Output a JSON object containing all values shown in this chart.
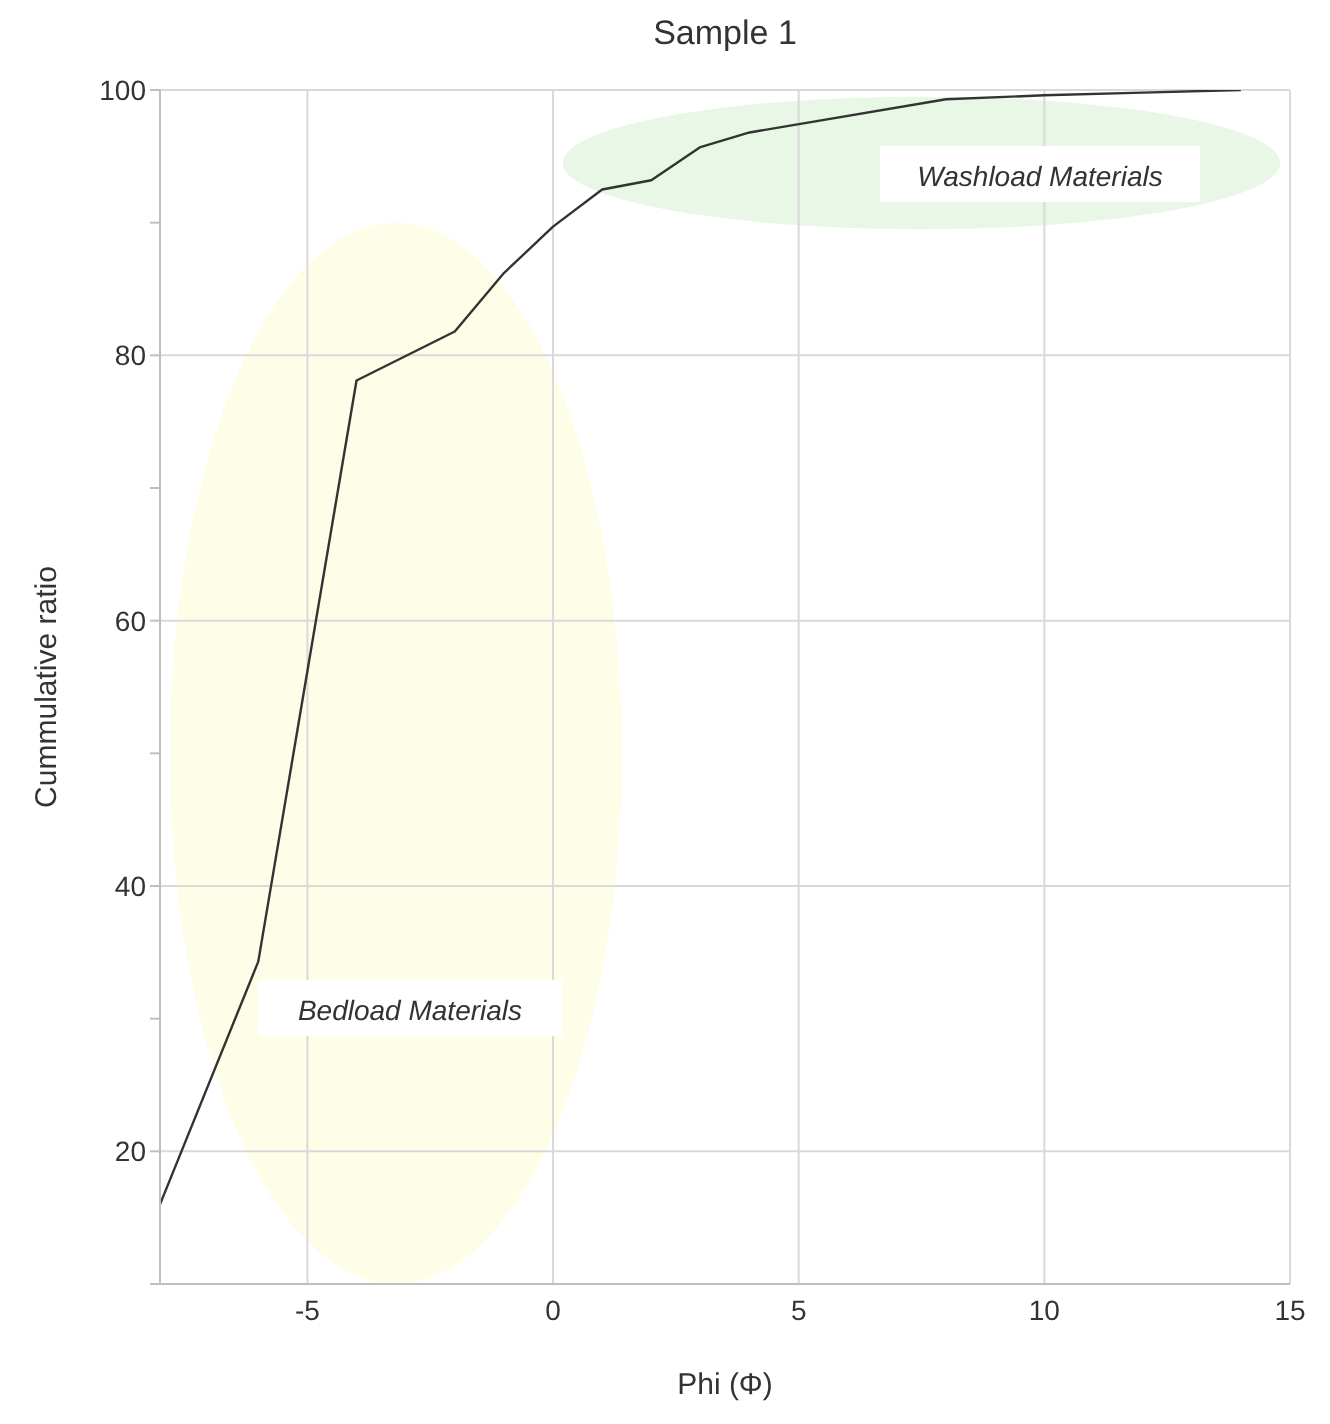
{
  "chart_data": {
    "type": "line",
    "title": "Sample 1",
    "xlabel": "Phi (Φ)",
    "ylabel": "Cummulative ratio",
    "x": [
      -8,
      -6,
      -4,
      -2,
      -1,
      0,
      1,
      2,
      3,
      4,
      8,
      10,
      12,
      14
    ],
    "series": [
      {
        "color": "#333333",
        "values": [
          16,
          34.3,
          78.1,
          81.8,
          86.2,
          89.7,
          92.5,
          93.2,
          95.7,
          96.8,
          99.3,
          99.6,
          99.8,
          100
        ]
      }
    ],
    "xlim": [
      -8,
      15
    ],
    "xticks": [
      -5,
      0,
      5,
      10,
      15
    ],
    "ylim": [
      10,
      100
    ],
    "yticks": [
      {
        "value": 10,
        "label": null
      },
      20,
      {
        "value": 30,
        "label": null
      },
      40,
      {
        "value": 50,
        "label": null
      },
      60,
      {
        "value": 70,
        "label": null
      },
      80,
      {
        "value": 90,
        "label": null
      },
      100
    ],
    "grid": true,
    "marker": "none",
    "line_style": "solid",
    "legend": false,
    "annotations": [
      "Bedload Materials",
      "Washload Materials"
    ]
  }
}
